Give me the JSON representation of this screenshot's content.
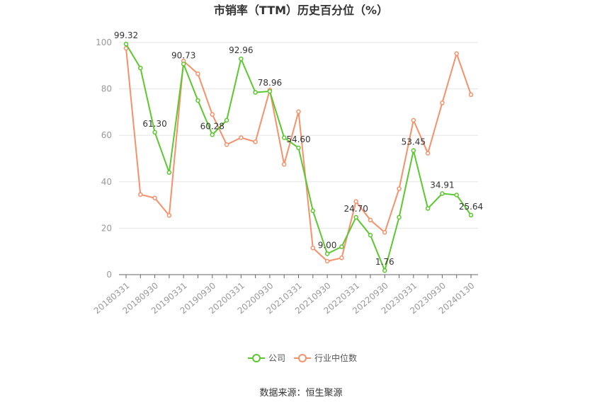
{
  "chart_data": {
    "type": "line",
    "title": "市销率（TTM）历史百分位（%）",
    "source": "数据来源：恒生聚源",
    "ylim": [
      0,
      100
    ],
    "yticks": [
      0,
      20,
      40,
      60,
      80,
      100
    ],
    "x": [
      "20180331",
      "20180630",
      "20180930",
      "20181231",
      "20190331",
      "20190630",
      "20190930",
      "20191231",
      "20200331",
      "20200630",
      "20200930",
      "20201231",
      "20210331",
      "20210630",
      "20210930",
      "20211231",
      "20220331",
      "20220630",
      "20220930",
      "20221231",
      "20230331",
      "20230630",
      "20230930",
      "20231231",
      "20240130"
    ],
    "xtick_labels": [
      "20180331",
      "20180930",
      "20190331",
      "20190930",
      "20200331",
      "20200930",
      "20210331",
      "20210930",
      "20220331",
      "20220930",
      "20230331",
      "20230930",
      "20240130"
    ],
    "series": [
      {
        "name": "公司",
        "color": "#5cc72e",
        "values": [
          99.32,
          89,
          61.3,
          44,
          90.73,
          75,
          60.28,
          66.5,
          92.96,
          78.5,
          78.96,
          59,
          54.6,
          27.5,
          9.0,
          12,
          24.7,
          17,
          1.76,
          24.7,
          53.45,
          28.5,
          34.91,
          34.3,
          25.64
        ],
        "labels": [
          "99.32",
          null,
          "61.30",
          null,
          "90.73",
          null,
          "60.28",
          null,
          "92.96",
          null,
          "78.96",
          null,
          "54.60",
          null,
          "9.00",
          null,
          "24.70",
          null,
          "1.76",
          null,
          "53.45",
          null,
          "34.91",
          null,
          "25.64"
        ]
      },
      {
        "name": "行业中位数",
        "color": "#f5916b",
        "values": [
          97.5,
          34.5,
          33,
          25.5,
          92,
          86.5,
          69,
          56,
          59,
          57.2,
          79.5,
          47.5,
          70.2,
          11.5,
          5.8,
          7.2,
          31.5,
          23.5,
          18.2,
          37,
          66.5,
          52.3,
          74,
          95.2,
          77.5
        ]
      }
    ],
    "legend_position": "bottom-center"
  }
}
